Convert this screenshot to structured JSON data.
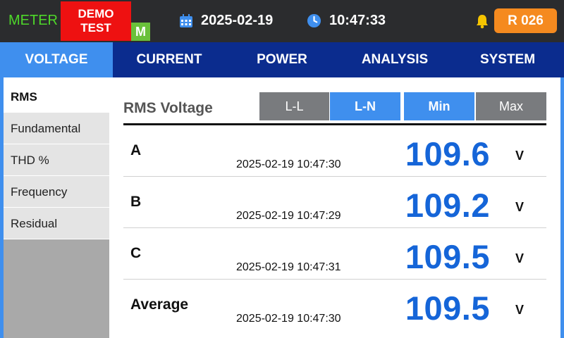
{
  "header": {
    "meter_label": "METER",
    "demo_badge_line1": "DEMO",
    "demo_badge_line2": "TEST",
    "mode_badge": "M",
    "date": "2025-02-19",
    "time": "10:47:33",
    "record_button": "R 026",
    "icons": [
      "calendar-icon",
      "clock-icon",
      "bell-icon"
    ],
    "colors": {
      "meter": "#4ed82a",
      "demo": "#ee1111",
      "mode_badge": "#6ac13a",
      "record": "#f58a1f",
      "bell": "#f5c400"
    }
  },
  "tabs": [
    {
      "label": "VOLTAGE",
      "active": true
    },
    {
      "label": "CURRENT",
      "active": false
    },
    {
      "label": "POWER",
      "active": false
    },
    {
      "label": "ANALYSIS",
      "active": false
    },
    {
      "label": "SYSTEM",
      "active": false
    }
  ],
  "sidebar": {
    "items": [
      {
        "label": "RMS",
        "active": true
      },
      {
        "label": "Fundamental",
        "active": false
      },
      {
        "label": "THD %",
        "active": false
      },
      {
        "label": "Frequency",
        "active": false
      },
      {
        "label": "Residual",
        "active": false
      }
    ]
  },
  "content": {
    "title": "RMS Voltage",
    "mode_toggle": [
      {
        "label": "L-L",
        "selected": false
      },
      {
        "label": "L-N",
        "selected": true
      }
    ],
    "stat_toggle": [
      {
        "label": "Min",
        "selected": true
      },
      {
        "label": "Max",
        "selected": false
      }
    ],
    "rows": [
      {
        "label": "A",
        "timestamp": "2025-02-19 10:47:30",
        "value": "109.6",
        "unit": "V"
      },
      {
        "label": "B",
        "timestamp": "2025-02-19 10:47:29",
        "value": "109.2",
        "unit": "V"
      },
      {
        "label": "C",
        "timestamp": "2025-02-19 10:47:31",
        "value": "109.5",
        "unit": "V"
      },
      {
        "label": "Average",
        "timestamp": "2025-02-19 10:47:30",
        "value": "109.5",
        "unit": "V"
      }
    ],
    "colors": {
      "accent": "#3f8fee",
      "tabbar": "#0b2c8e",
      "value": "#1565d8"
    }
  }
}
